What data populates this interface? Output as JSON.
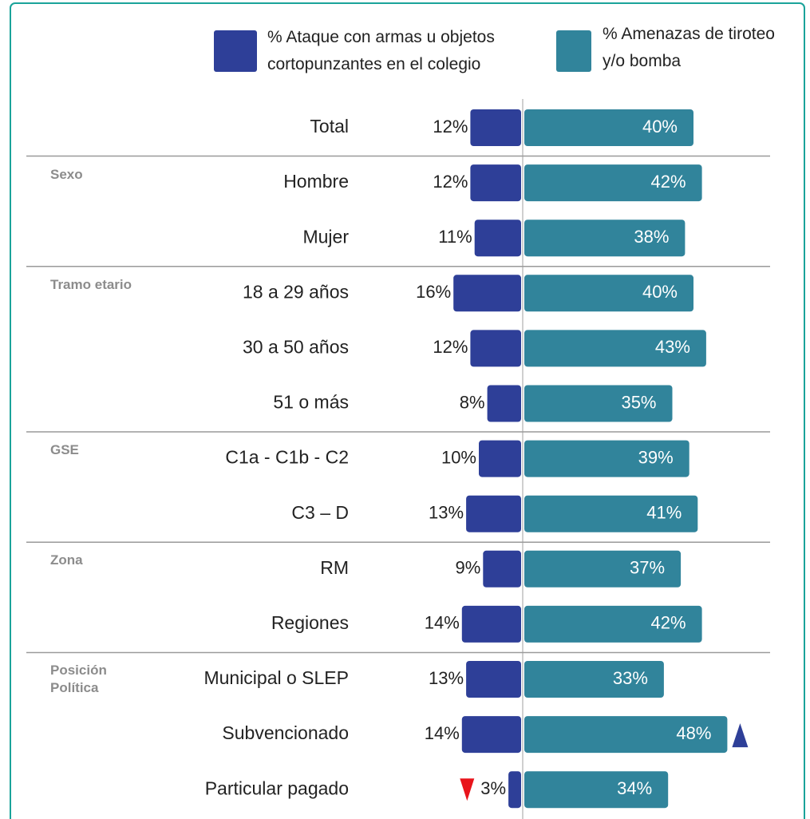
{
  "chart_data": {
    "type": "diverging-bar",
    "categories": [
      "Total",
      "Hombre",
      "Mujer",
      "18 a 29 años",
      "30 a 50 años",
      "51 o más",
      "C1a - C1b - C2",
      "C3 – D",
      "RM",
      "Regiones",
      "Municipal o SLEP",
      "Subvencionado",
      "Particular pagado"
    ],
    "category_groups": [
      null,
      "Sexo",
      "Sexo",
      "Tramo etario",
      "Tramo etario",
      "Tramo etario",
      "GSE",
      "GSE",
      "Zona",
      "Zona",
      "Posición Política",
      "Posición Política",
      "Posición Política"
    ],
    "series": [
      {
        "name": "% Ataque con armas u objetos cortopunzantes en el colegio",
        "color": "#2e3f98",
        "values": [
          12,
          12,
          11,
          16,
          12,
          8,
          10,
          13,
          9,
          14,
          13,
          14,
          3
        ],
        "value_labels": [
          "12%",
          "12%",
          "11%",
          "16%",
          "12%",
          "8%",
          "10%",
          "13%",
          "9%",
          "14%",
          "13%",
          "14%",
          "3%"
        ]
      },
      {
        "name": "% Amenazas de tiroteo y/o bomba",
        "color": "#31849b",
        "values": [
          40,
          42,
          38,
          40,
          43,
          35,
          39,
          41,
          37,
          42,
          33,
          48,
          34
        ],
        "value_labels": [
          "40%",
          "42%",
          "38%",
          "40%",
          "43%",
          "35%",
          "39%",
          "41%",
          "37%",
          "42%",
          "33%",
          "48%",
          "34%"
        ]
      }
    ],
    "markers": [
      {
        "series": 1,
        "index": 11,
        "direction": "up",
        "color": "#2e3f98"
      },
      {
        "series": 0,
        "index": 12,
        "direction": "down",
        "color": "#e8141b"
      }
    ]
  }
}
